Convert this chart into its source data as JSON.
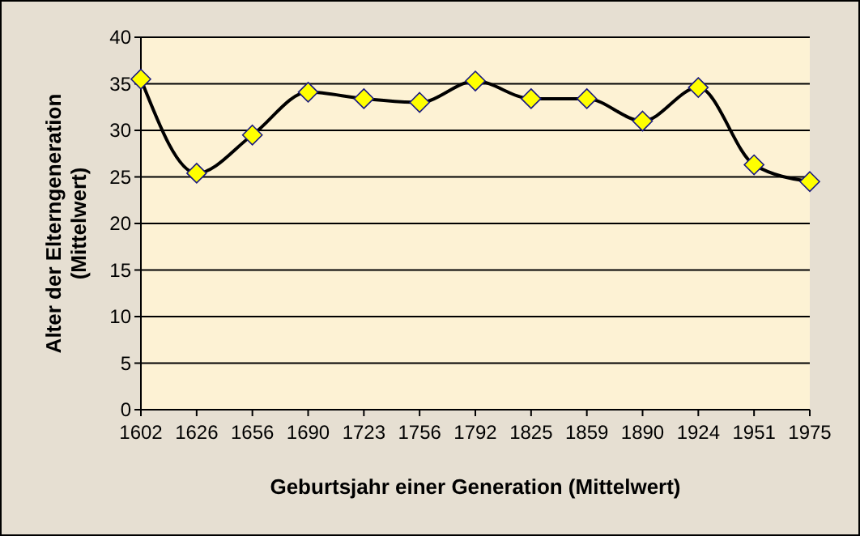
{
  "chart_data": {
    "type": "line",
    "xlabel": "Geburtsjahr einer Generation (Mittelwert)",
    "ylabel": "Alter der Elterngeneration (Mittelwert)",
    "categories": [
      "1602",
      "1626",
      "1656",
      "1690",
      "1723",
      "1756",
      "1792",
      "1825",
      "1859",
      "1890",
      "1924",
      "1951",
      "1975"
    ],
    "series": [
      {
        "color": "#000000",
        "values": [
          35.5,
          25.4,
          29.5,
          34.1,
          33.4,
          33,
          35.3,
          33.4,
          33.4,
          31,
          34.6,
          26.3,
          24.5
        ]
      }
    ],
    "ylim": [
      0,
      40
    ],
    "yticks": [
      0,
      5,
      10,
      15,
      20,
      25,
      30,
      35,
      40
    ],
    "grid": "y",
    "marker": "diamond",
    "line_style": "solid"
  }
}
